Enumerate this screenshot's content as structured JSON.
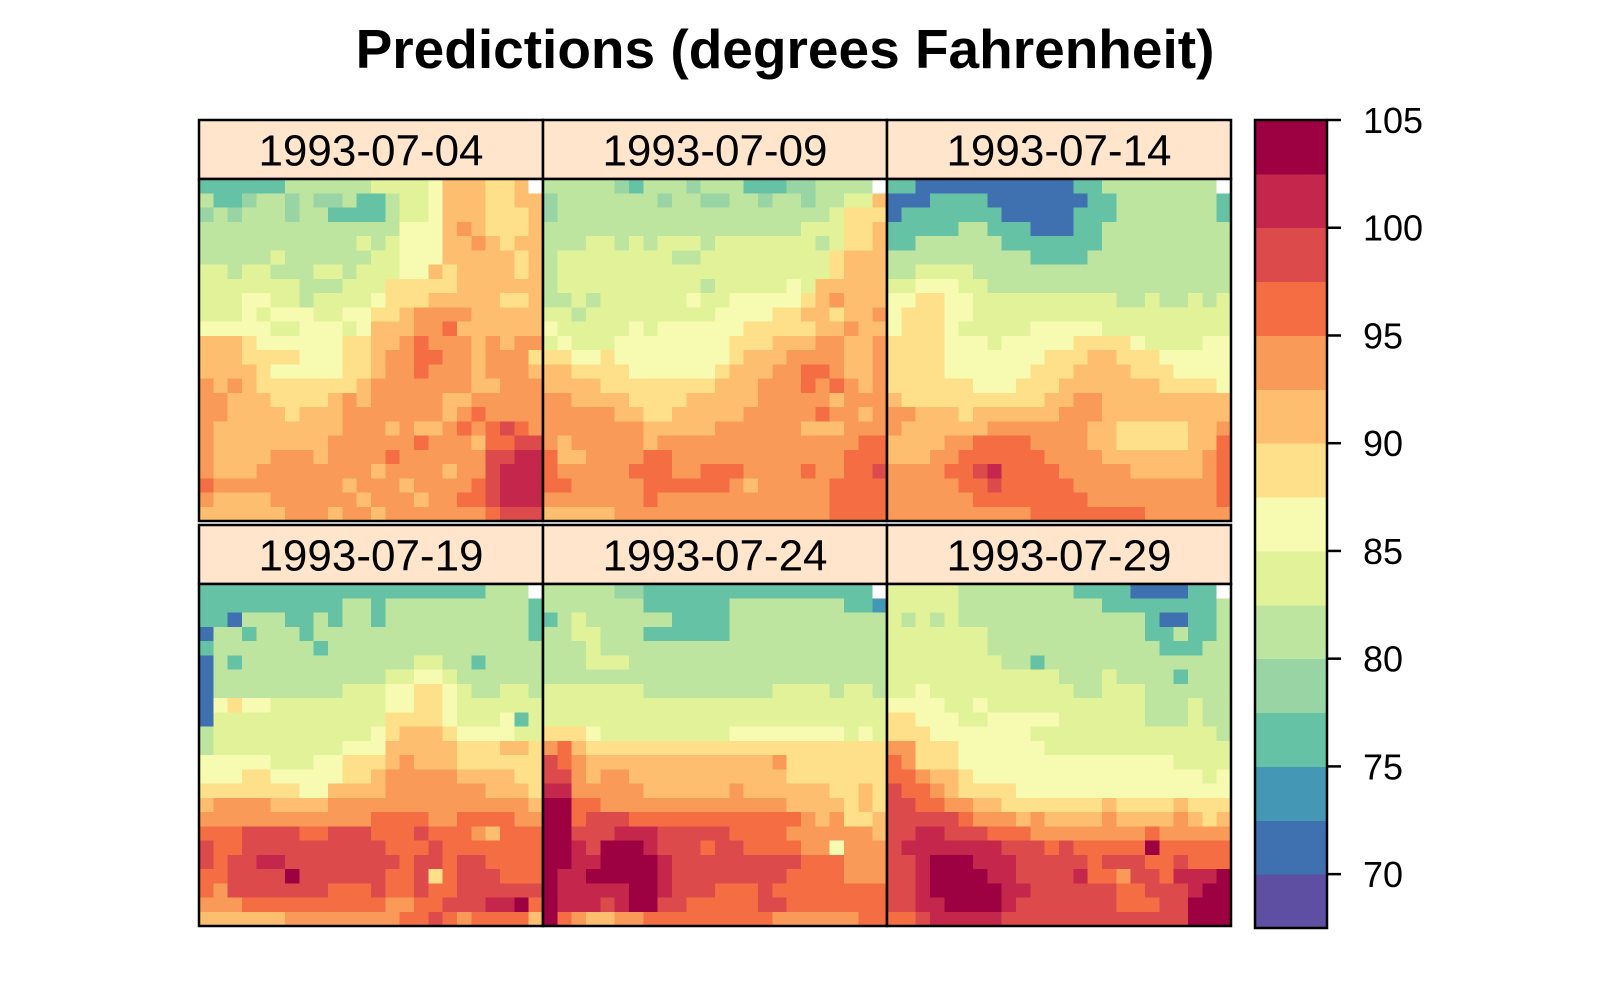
{
  "chart_data": {
    "type": "heatmap",
    "title": "Predictions (degrees Fahrenheit)",
    "layout": {
      "columns": 3,
      "rows": 2
    },
    "grid": {
      "ncols": 24,
      "nrows": 24
    },
    "panels": [
      {
        "label": "1993-07-04",
        "rows": [
          "77 75 75 75 77 77 80 80 80 80 80 82 84 84 84 84 87 92 92 92 89 89 92 99",
          "80 77 77 78 80 80 78 80 78 78 80 77 77 80 84 84 87 92 92 92 89 89 92 91",
          "78 80 78 80 80 80 78 80 80 77 77 77 77 80 84 84 87 92 92 92 89 89 89 91",
          "82 80 80 80 82 80 80 80 80 80 82 80 80 80 85 87 87 92 94 92 89 89 89 91",
          "82 82 82 82 80 82 82 82 80 82 82 84 82 84 85 87 87 92 92 94 92 89 91 91",
          "82 82 82 82 82 84 82 80 80 80 82 82 84 84 85 87 87 92 92 92 92 92 89 91",
          "84 84 82 84 84 82 80 82 84 84 82 84 84 84 87 87 90 89 92 92 92 92 89 91",
          "84 84 84 84 84 84 84 82 82 82 84 84 84 89 89 89 89 89 92 92 92 91 91 91",
          "84 84 84 86 86 84 84 82 84 84 84 84 87 89 89 89 92 92 92 92 92 89 89 91",
          "84 84 84 86 84 86 86 86 84 84 86 86 89 89 91 94 94 94 94 92 92 92 92 91",
          "87 87 87 87 86 84 84 86 86 86 84 86 92 92 92 94 94 96 92 92 91 91 91 91",
          "90 90 90 89 86 86 86 86 86 86 89 89 92 92 94 97 94 94 94 92 94 92 94 94",
          "90 90 92 89 89 89 89 87 87 87 89 89 92 94 94 96 97 94 94 92 94 94 94 89",
          "92 92 92 92 89 87 87 87 87 87 89 89 92 94 94 97 94 94 94 92 94 94 94 91",
          "94 92 94 92 89 89 89 89 89 89 89 92 94 94 94 94 94 94 94 92 92 94 94 94",
          "94 94 92 92 92 89 89 89 89 92 94 92 94 94 94 94 94 92 92 94 94 94 94 94",
          "94 94 92 92 92 92 89 92 92 92 94 94 94 94 94 94 94 92 94 96 94 94 94 94",
          "94 92 92 92 92 92 92 92 92 92 94 94 94 92 94 92 92 94 96 94 96 99 96 94",
          "94 92 92 92 92 92 92 92 92 94 94 94 94 94 94 96 94 94 94 92 96 96 99 99",
          "94 92 92 92 92 94 94 94 92 94 94 94 94 96 94 94 94 94 94 94 99 99 101 101",
          "94 92 92 92 94 94 94 94 94 94 94 94 92 94 94 94 94 92 94 94 99 101 101 101",
          "96 94 94 94 94 94 94 94 94 94 92 94 94 94 92 94 94 94 94 96 99 101 101 101",
          "94 92 92 92 92 94 94 94 94 94 94 92 94 94 94 92 94 94 96 96 99 101 101 101",
          "92 92 92 92 92 92 94 94 94 92 94 94 92 94 94 94 94 94 94 94 96 99 99 99"
        ]
      },
      {
        "label": "1993-07-09",
        "rows": [
          "80 80 80 80 80 78 77 80 80 80 78 80 80 80 77 77 77 78 78 80 80 80 80 91",
          "78 80 80 80 80 80 80 80 78 80 80 78 78 80 80 78 80 80 78 82 82 84 84 91",
          "78 80 80 82 82 80 80 82 80 80 80 80 80 80 80 80 80 80 82 82 84 89 89 89",
          "82 82 82 82 82 82 80 80 82 82 80 80 80 80 82 82 82 82 84 84 84 89 89 91",
          "80 82 82 84 84 82 84 82 84 84 84 82 84 84 84 84 84 84 84 82 84 89 89 91",
          "82 84 84 84 84 84 84 84 84 82 82 84 84 84 84 84 84 84 84 84 89 92 92 91",
          "80 84 84 84 84 84 84 84 84 84 84 84 84 84 84 84 84 84 84 84 89 92 92 91",
          "82 84 84 84 84 84 84 84 84 84 84 82 84 84 84 84 84 86 84 92 92 92 92 91",
          "82 82 84 82 84 84 84 84 84 84 86 84 84 86 86 86 86 86 89 92 94 92 92 91",
          "84 84 82 84 84 84 84 84 84 84 84 84 86 86 86 86 89 89 92 92 89 92 92 94",
          "87 84 84 84 84 84 86 84 86 86 86 86 86 86 89 89 89 89 89 92 92 94 92 91",
          "84 87 84 84 84 86 86 86 86 86 86 86 86 89 89 89 92 92 92 94 94 92 92 94",
          "89 89 87 87 89 86 86 86 86 86 86 86 86 89 92 92 92 94 94 94 94 92 92 94",
          "92 92 89 89 89 89 86 86 86 86 86 86 89 92 92 92 94 94 96 96 94 92 92 94",
          "92 92 92 92 89 89 89 89 89 89 89 89 92 92 92 94 94 94 96 94 96 94 92 94",
          "94 94 92 92 92 92 89 89 89 89 92 92 92 92 92 94 94 94 94 94 92 94 94 94",
          "94 94 94 94 94 92 92 89 89 92 92 92 92 92 94 94 94 94 94 96 94 94 92 94",
          "94 94 94 94 94 94 94 92 92 92 92 92 94 94 94 94 94 94 92 92 92 94 94 94",
          "94 92 94 94 94 94 94 92 94 94 94 94 94 94 94 94 94 94 94 94 94 94 96 96",
          "96 92 92 94 94 94 94 96 96 94 94 94 94 94 94 94 94 94 94 94 94 96 96 96",
          "96 94 94 94 94 94 96 96 96 94 94 96 96 96 94 94 94 94 96 94 94 96 96 99",
          "96 96 94 94 94 94 94 96 96 96 96 96 96 94 92 94 94 94 94 94 96 96 96 96",
          "94 94 94 94 94 94 94 96 94 94 94 94 94 94 94 94 94 94 94 94 96 96 96 96",
          "92 92 92 92 92 94 94 94 94 94 94 94 94 94 94 94 94 94 94 94 96 96 96 96"
        ]
      },
      {
        "label": "1993-07-14",
        "rows": [
          "75 75 72 72 72 72 70 70 70 70 70 70 72 75 77 80 80 80 80 80 80 80 80 91",
          "72 72 72 75 75 75 75 70 70 70 70 72 70 72 75 77 80 80 80 80 80 80 80 77",
          "72 75 75 77 77 77 77 75 72 72 72 72 72 75 75 77 80 80 80 80 80 80 80 77",
          "75 75 77 77 77 80 80 77 77 75 72 72 72 75 75 80 80 80 80 80 80 80 80 80",
          "77 77 80 80 80 80 80 80 77 77 77 77 75 75 77 80 80 80 82 80 80 80 80 80",
          "80 80 82 82 82 82 80 80 80 80 77 77 77 77 80 80 82 82 82 82 80 80 80 80",
          "82 82 84 84 84 84 82 82 80 80 80 80 80 80 80 82 82 82 82 82 80 80 80 82",
          "84 84 86 86 86 84 84 82 82 82 82 80 80 82 82 82 82 82 82 82 80 80 82 82",
          "86 86 89 89 86 86 84 84 84 84 84 84 84 84 84 84 82 82 84 82 82 84 82 84",
          "86 89 89 89 86 86 84 84 84 84 84 84 84 84 84 84 84 84 84 84 84 84 84 84",
          "86 89 89 89 86 84 84 84 84 84 86 86 86 86 86 84 84 84 84 84 84 84 84 84",
          "89 89 89 89 86 86 86 84 86 86 86 86 86 89 89 89 89 86 84 84 84 84 86 86",
          "89 89 89 89 86 86 86 86 86 86 86 89 89 89 92 92 89 89 89 86 86 86 86 86",
          "89 89 89 89 86 86 86 86 86 86 89 89 89 92 92 92 92 89 89 89 86 86 86 86",
          "89 89 89 89 89 89 86 86 86 89 89 89 92 92 92 92 92 92 92 89 89 89 89 86",
          "92 89 89 89 89 89 89 89 89 89 89 92 92 94 94 92 92 92 92 92 92 92 92 92",
          "94 94 92 92 92 89 92 92 92 92 92 92 94 94 94 92 92 92 92 92 92 92 92 92",
          "94 92 92 92 92 92 92 94 94 94 94 94 94 94 92 92 89 89 89 89 89 92 92 94",
          "92 92 92 92 94 94 96 96 96 96 94 94 94 94 92 92 89 89 89 89 89 92 92 96",
          "92 92 92 94 94 96 96 96 96 96 96 94 94 94 94 92 92 92 92 92 92 92 94 96",
          "94 94 94 94 96 96 99 101 96 96 96 96 94 94 94 94 94 92 92 92 92 92 94 96",
          "94 94 94 94 94 96 96 99 96 96 96 96 96 94 94 94 94 94 94 94 94 94 94 96",
          "94 94 94 94 94 94 96 96 96 96 96 96 96 96 94 94 94 94 94 94 94 94 94 96",
          "94 94 94 94 94 94 94 94 94 94 96 96 96 96 96 96 96 96 94 94 94 94 94 94"
        ]
      },
      {
        "label": "1993-07-19",
        "rows": [
          "75 75 75 75 75 75 75 75 75 75 75 77 77 77 77 77 77 77 77 77 80 80 80 91",
          "77 77 75 77 77 77 75 77 75 77 80 80 77 80 80 80 82 80 82 82 80 80 80 77",
          "75 75 72 80 80 80 77 77 80 77 80 80 77 80 80 80 80 82 82 80 80 80 80 77",
          "72 80 80 77 80 80 80 77 80 80 80 80 80 80 80 80 82 82 82 82 82 80 80 77",
          "75 82 80 80 80 80 80 80 77 80 80 80 80 80 80 82 82 82 80 82 82 80 82 80",
          "72 80 77 82 80 80 80 80 80 80 80 82 82 82 82 84 84 82 82 77 80 80 80 80",
          "72 80 82 82 80 82 80 80 82 82 82 82 82 84 84 86 86 84 82 80 82 82 82 80",
          "72 82 82 82 82 82 82 82 82 82 84 84 84 86 86 89 89 86 84 82 82 84 84 82",
          "70 86 89 86 86 84 84 84 84 84 84 84 84 86 86 89 89 86 84 84 84 84 84 84",
          "72 84 84 84 84 84 84 84 84 84 84 84 84 89 89 89 89 86 84 84 84 86 77 84",
          "82 84 84 84 84 84 84 84 84 84 84 84 86 89 92 92 92 89 86 86 86 86 84 84",
          "82 84 84 84 84 84 84 84 84 84 86 86 86 92 92 92 92 92 89 89 89 92 92 89",
          "86 86 86 86 86 84 84 84 86 86 89 89 89 92 94 92 92 92 89 89 89 89 89 89",
          "86 86 86 89 89 86 86 86 86 86 89 89 92 94 94 94 94 94 92 92 92 92 89 89",
          "89 89 89 89 89 89 89 86 86 92 92 92 92 94 94 94 94 94 94 94 92 92 92 89",
          "92 94 94 94 94 92 92 92 92 94 94 94 94 94 94 94 94 94 94 94 94 94 94 92",
          "94 94 94 94 94 94 94 94 94 94 94 94 96 96 96 96 94 94 96 96 96 96 94 94",
          "96 96 96 99 99 99 99 96 96 99 99 99 96 96 96 99 96 96 96 94 92 96 96 96",
          "99 96 96 99 99 99 99 99 99 99 99 99 99 96 96 96 99 96 96 96 96 96 96 96",
          "99 96 99 99 101 101 99 99 99 99 99 99 99 99 96 99 99 96 99 99 96 96 96 96",
          "96 96 99 99 99 99 104 99 99 99 99 99 99 96 96 99 89 96 99 99 99 96 96 96",
          "96 94 99 99 99 99 99 99 99 96 96 96 99 96 96 99 96 96 99 99 99 99 99 99",
          "94 94 94 96 96 96 96 96 96 96 96 96 96 94 94 96 96 99 99 99 101 101 104 96",
          "92 92 92 92 92 92 94 94 94 94 94 94 94 94 96 96 99 96 94 96 96 96 96 92"
        ]
      },
      {
        "label": "1993-07-24",
        "rows": [
          "80 80 80 82 80 78 78 75 75 75 75 75 77 77 77 77 77 77 77 77 77 77 77 91",
          "80 82 82 82 80 80 80 77 77 77 77 77 77 80 80 80 80 80 80 80 80 77 77 73",
          "77 82 84 82 82 80 80 80 80 77 77 77 77 80 82 82 80 82 82 82 80 80 82 80",
          "82 82 84 84 82 82 80 77 77 77 77 77 77 80 82 82 80 82 82 80 80 80 80 80",
          "82 82 82 84 82 82 80 80 80 80 80 80 80 80 82 82 82 82 80 80 80 80 80 80",
          "80 82 82 84 84 84 82 82 80 80 80 82 82 82 82 82 82 80 80 82 80 80 80 80",
          "80 82 82 82 82 82 82 82 82 82 82 80 80 82 82 80 82 82 82 82 82 82 82 82",
          "84 84 84 84 84 84 84 82 82 82 82 80 80 80 82 82 84 84 84 84 82 84 84 82",
          "84 84 84 84 84 84 84 84 84 84 84 84 84 84 84 84 84 84 84 84 84 84 84 84",
          "84 84 84 84 84 84 84 84 84 84 84 84 84 84 84 84 84 84 84 84 84 84 84 84",
          "89 89 89 86 84 84 84 84 84 84 84 84 84 86 86 86 86 86 86 86 86 84 86 84",
          "94 96 92 89 89 89 89 89 89 89 89 89 89 89 89 89 89 89 89 89 89 89 89 89",
          "99 96 94 92 92 92 92 92 92 92 92 92 92 92 92 92 94 89 89 89 89 89 89 89",
          "99 99 94 92 94 94 92 92 92 92 92 92 92 92 92 92 92 89 89 89 89 89 89 89",
          "101 101 94 94 94 94 94 92 92 92 92 92 92 94 92 92 92 92 92 92 89 89 92 89",
          "104 104 96 96 94 94 94 94 94 94 94 94 94 94 94 94 94 92 92 92 92 89 92 89",
          "104 104 96 99 99 99 96 96 96 96 96 96 96 96 96 96 96 96 94 92 94 89 89 92",
          "104 104 99 99 99 101 101 101 99 99 99 99 99 96 96 96 96 94 94 94 94 94 94 92",
          "104 104 101 99 104 104 104 101 99 99 99 96 99 99 96 96 96 96 94 94 86 94 94 94",
          "104 104 101 101 104 104 104 104 101 99 99 99 99 99 99 99 99 99 96 96 96 94 94 94",
          "104 101 101 104 104 104 104 104 101 99 99 99 99 99 99 99 99 96 96 96 96 94 94 94",
          "104 101 101 101 101 101 104 104 101 99 99 99 96 96 96 99 96 96 96 96 96 96 96 96",
          "104 101 101 101 99 101 104 104 99 99 96 96 96 96 96 99 99 96 96 96 96 96 96 96",
          "104 96 94 92 92 94 94 96 96 96 96 96 96 96 96 96 94 94 94 94 94 94 96 96"
        ]
      },
      {
        "label": "1993-07-29",
        "rows": [
          "84 84 84 84 84 82 82 80 80 80 80 80 80 77 77 77 75 72 70 70 70 77 77 91",
          "84 84 84 84 84 82 82 82 80 80 80 80 80 80 80 77 77 75 75 75 75 77 77 80",
          "84 82 84 82 84 82 82 82 82 80 80 80 80 80 80 82 80 80 77 72 70 77 77 80",
          "84 84 84 84 84 84 84 82 82 82 82 80 80 80 80 80 80 80 77 77 80 77 75 80",
          "84 84 84 84 84 84 84 82 82 82 82 82 80 82 82 82 80 80 80 77 77 77 80 80",
          "84 84 84 84 84 84 84 84 82 82 77 82 82 80 82 82 82 82 80 80 80 80 80 80",
          "84 84 84 84 84 84 84 84 84 84 84 84 80 82 82 84 82 82 82 80 75 80 80 80",
          "84 84 86 84 84 84 84 84 84 84 84 84 84 82 82 84 84 84 82 82 82 80 80 80",
          "86 86 86 86 84 84 86 84 84 84 84 84 84 84 84 84 84 84 82 82 82 84 80 80",
          "89 89 86 86 86 84 84 86 86 86 86 86 84 84 84 84 84 84 82 82 82 84 80 82",
          "89 89 89 86 86 86 86 86 86 86 84 84 84 84 84 84 84 84 84 84 84 84 84 82",
          "94 94 89 89 89 86 86 86 86 86 86 84 84 84 84 84 84 84 84 84 84 84 84 84",
          "96 94 89 89 89 86 86 86 86 86 86 86 86 86 86 86 86 86 86 86 84 84 84 84",
          "96 96 94 92 92 89 86 86 86 86 86 86 86 86 86 86 86 86 86 86 86 86 84 86",
          "99 96 96 94 92 89 89 89 89 86 86 86 86 86 86 86 86 86 86 86 86 86 86 86",
          "99 99 96 96 94 94 92 92 89 89 89 89 89 89 89 92 89 89 89 89 92 89 89 89",
          "99 99 99 99 99 96 94 94 94 92 94 92 92 92 92 94 92 92 92 92 94 92 89 92",
          "99 99 101 101 99 99 99 96 96 96 94 94 94 94 94 94 94 94 96 94 94 94 94 94",
          "99 101 101 101 101 101 101 101 99 99 99 96 99 96 96 96 96 96 104 96 96 96 96 96",
          "99 99 101 104 104 104 101 101 101 99 99 99 99 99 96 99 99 99 96 96 99 96 96 96",
          "99 99 101 104 104 104 104 101 101 99 99 99 99 101 96 96 94 99 99 96 101 101 101 104",
          "99 99 101 104 104 104 104 104 101 101 99 99 99 99 99 99 96 96 99 99 99 101 104 104",
          "99 99 101 101 104 104 104 104 101 99 99 99 99 99 99 99 96 96 96 99 99 104 104 104",
          "96 96 99 101 101 101 101 101 99 99 99 99 99 99 99 99 99 99 99 99 99 104 104 104"
        ]
      }
    ],
    "colorbar": {
      "range": [
        67.5,
        105
      ],
      "breaks": [
        67.5,
        70,
        72.5,
        75,
        77.5,
        80,
        82.5,
        85,
        87.5,
        90,
        92.5,
        95,
        97.5,
        100,
        102.5,
        105
      ],
      "colors": [
        "#5E4FA2",
        "#3F71B1",
        "#4497B5",
        "#66C2A5",
        "#99D5A4",
        "#BDE5A0",
        "#E2F298",
        "#F7FAB1",
        "#FEE08B",
        "#FDBE6F",
        "#FA9A58",
        "#F46D43",
        "#DD4A4C",
        "#C4274B",
        "#9E0142"
      ],
      "ticks": [
        70,
        75,
        80,
        85,
        90,
        95,
        100,
        105
      ],
      "tick_labels": [
        "70",
        "75",
        "80",
        "85",
        "90",
        "95",
        "100",
        "105"
      ]
    }
  }
}
